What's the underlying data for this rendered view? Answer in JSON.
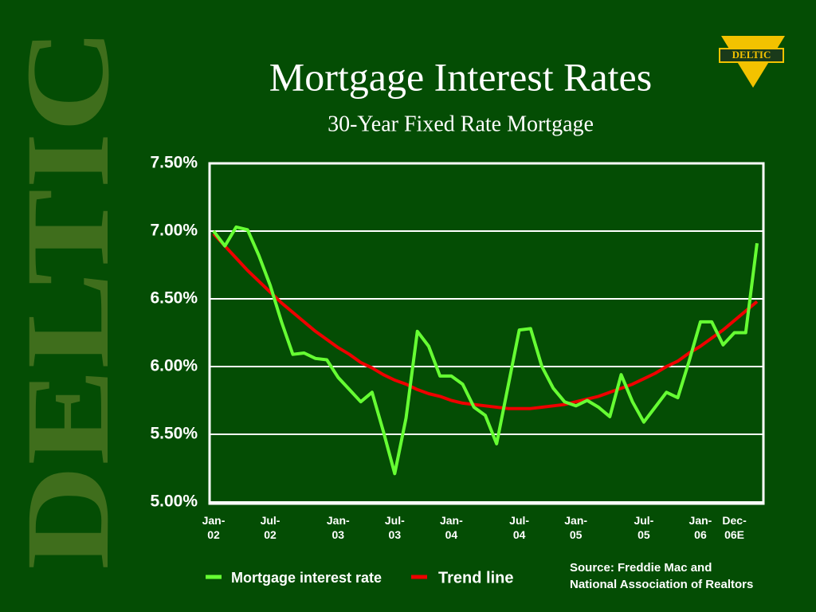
{
  "watermark": "DELTIC",
  "logo": "DELTIC",
  "source": "Source: Freddie Mac and\nNational Association of Realtors",
  "chart_data": {
    "type": "line",
    "title": "Mortgage Interest Rates",
    "subtitle": "30-Year Fixed Rate Mortgage",
    "categories": [
      "Jan-\n02",
      null,
      null,
      null,
      null,
      "Jul-\n02",
      null,
      null,
      null,
      null,
      null,
      "Jan-\n03",
      null,
      null,
      null,
      null,
      "Jul-\n03",
      null,
      null,
      null,
      null,
      "Jan-\n04",
      null,
      null,
      null,
      null,
      null,
      "Jul-\n04",
      null,
      null,
      null,
      null,
      "Jan-\n05",
      null,
      null,
      null,
      null,
      null,
      "Jul-\n05",
      null,
      null,
      null,
      null,
      "Jan-\n06",
      null,
      null,
      "Dec-\n06E",
      null,
      null
    ],
    "series": [
      {
        "name": "Mortgage interest rate",
        "color": "#66ff33",
        "values": [
          7.0,
          6.89,
          7.03,
          7.01,
          6.82,
          6.6,
          6.33,
          6.09,
          6.1,
          6.06,
          6.05,
          5.92,
          5.83,
          5.74,
          5.81,
          5.52,
          5.21,
          5.62,
          6.26,
          6.15,
          5.93,
          5.93,
          5.87,
          5.7,
          5.64,
          5.43,
          5.85,
          6.27,
          6.28,
          6.0,
          5.84,
          5.74,
          5.71,
          5.75,
          5.7,
          5.63,
          5.94,
          5.74,
          5.59,
          5.7,
          5.81,
          5.77,
          6.04,
          6.33,
          6.33,
          6.16,
          6.25,
          6.25,
          6.91
        ]
      },
      {
        "name": "Trend line",
        "color": "#ee0000",
        "values": [
          6.98,
          6.89,
          6.8,
          6.71,
          6.63,
          6.55,
          6.47,
          6.4,
          6.33,
          6.26,
          6.2,
          6.14,
          6.09,
          6.03,
          5.99,
          5.94,
          5.9,
          5.87,
          5.83,
          5.8,
          5.78,
          5.75,
          5.73,
          5.72,
          5.71,
          5.7,
          5.69,
          5.69,
          5.69,
          5.7,
          5.71,
          5.72,
          5.74,
          5.76,
          5.78,
          5.81,
          5.84,
          5.87,
          5.91,
          5.95,
          6.0,
          6.04,
          6.1,
          6.15,
          6.21,
          6.27,
          6.34,
          6.41,
          6.48
        ]
      }
    ],
    "ylim": [
      5.0,
      7.5
    ],
    "yticks": [
      {
        "value": 5.0,
        "label": "5.00%"
      },
      {
        "value": 5.5,
        "label": "5.50%"
      },
      {
        "value": 6.0,
        "label": "6.00%"
      },
      {
        "value": 6.5,
        "label": "6.50%"
      },
      {
        "value": 7.0,
        "label": "7.00%"
      },
      {
        "value": 7.5,
        "label": "7.50%"
      }
    ],
    "grid": true,
    "legend": "bottom"
  }
}
